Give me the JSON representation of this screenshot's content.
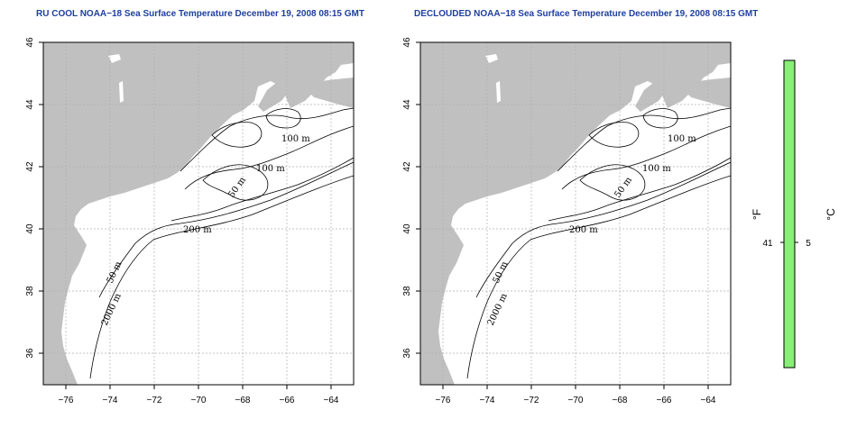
{
  "maps": [
    {
      "title": "RU COOL NOAA−18 Sea Surface Temperature December 19, 2008 08:15 GMT"
    },
    {
      "title": "DECLOUDED NOAA−18 Sea Surface Temperature December 19, 2008 08:15 GMT"
    }
  ],
  "axes": {
    "lon_ticks": [
      "−76",
      "−74",
      "−72",
      "−70",
      "−68",
      "−66",
      "−64"
    ],
    "lat_ticks": [
      "36",
      "38",
      "40",
      "42",
      "44",
      "46"
    ]
  },
  "contour_labels": [
    "100 m",
    "100 m",
    "50 m",
    "200 m",
    "50 m",
    "2000 m"
  ],
  "colorbar": {
    "unit_f": "°F",
    "unit_c": "°C",
    "value_f": "41",
    "value_c": "5",
    "color": "#88ee77"
  },
  "colors": {
    "land": "#c0c0c0",
    "water": "#ffffff",
    "grid": "#b0b0b0",
    "title": "#1f3f9f"
  }
}
